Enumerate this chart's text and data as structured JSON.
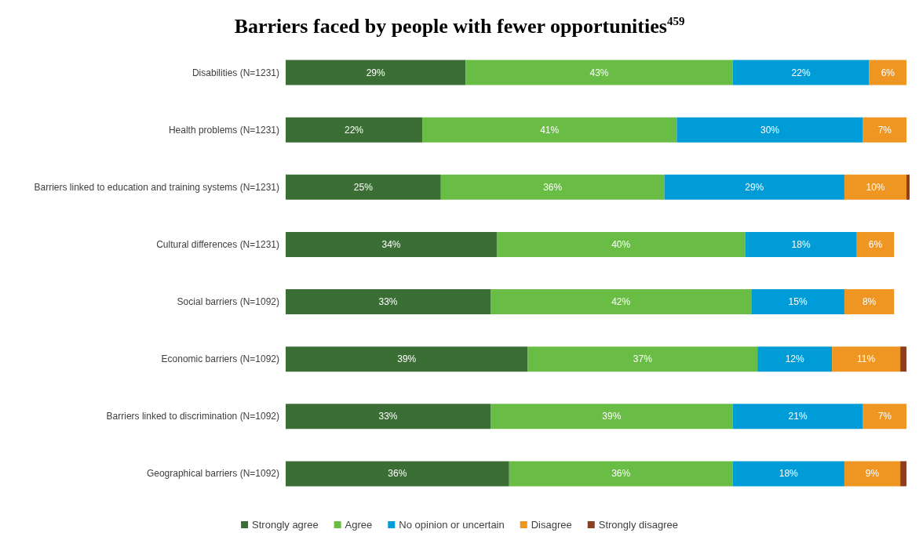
{
  "chart_data": {
    "type": "bar",
    "orientation": "horizontal",
    "stacked": true,
    "title": "Barriers faced by people with fewer opportunities$^{459}$",
    "categories": [
      "Disabilities (N=1231)",
      "Health problems (N=1231)",
      "Barriers linked to education and training systems (N=1231)",
      "Cultural differences (N=1231)",
      "Social barriers (N=1092)",
      "Economic barriers (N=1092)",
      "Barriers linked to discrimination (N=1092)",
      "Geographical barriers (N=1092)"
    ],
    "series": [
      {
        "name": "Strongly agree",
        "color": "#3b6e35",
        "values": [
          29,
          22,
          25,
          34,
          33,
          39,
          33,
          36
        ],
        "value_labels": [
          "29%",
          "22%",
          "25%",
          "34%",
          "33%",
          "39%",
          "33%",
          "36%"
        ]
      },
      {
        "name": "Agree",
        "color": "#69bd45",
        "values": [
          43,
          41,
          36,
          40,
          42,
          37,
          39,
          36
        ],
        "value_labels": [
          "43%",
          "41%",
          "36%",
          "40%",
          "42%",
          "37%",
          "39%",
          "36%"
        ]
      },
      {
        "name": "No opinion or uncertain",
        "color": "#009cd7",
        "values": [
          22,
          30,
          29,
          18,
          15,
          12,
          21,
          18
        ],
        "value_labels": [
          "22%",
          "30%",
          "29%",
          "18%",
          "15%",
          "12%",
          "21%",
          "18%"
        ]
      },
      {
        "name": "Disagree",
        "color": "#ef9522",
        "values": [
          6,
          7,
          10,
          6,
          8,
          11,
          7,
          9
        ],
        "value_labels": [
          "6%",
          "7%",
          "10%",
          "6%",
          "8%",
          "11%",
          "7%",
          "9%"
        ]
      },
      {
        "name": "Strongly disagree",
        "color": "#8b3f1f",
        "values": [
          null,
          null,
          0.5,
          null,
          null,
          1,
          null,
          1
        ],
        "value_labels": [
          null,
          null,
          null,
          null,
          null,
          null,
          null,
          null
        ]
      }
    ],
    "grid": false,
    "legend": "bottom"
  }
}
